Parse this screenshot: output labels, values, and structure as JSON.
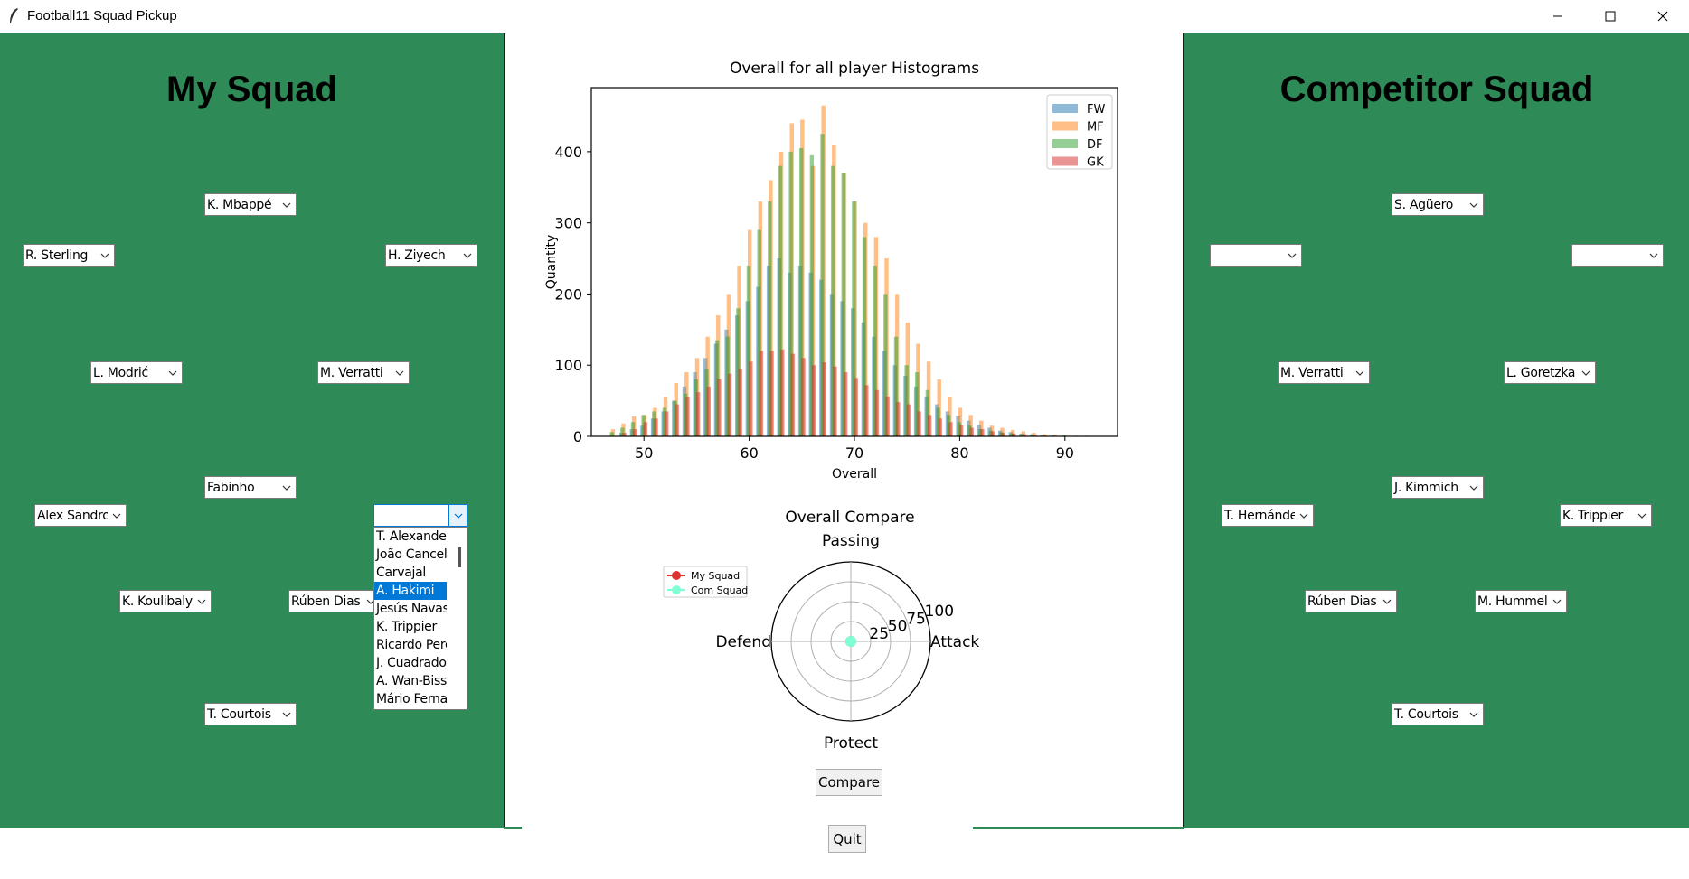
{
  "window": {
    "title": "Football11 Squad Pickup"
  },
  "my_squad": {
    "title": "My Squad",
    "slots": [
      {
        "id": "fw-center",
        "value": "K. Mbappé"
      },
      {
        "id": "fw-left",
        "value": "R. Sterling"
      },
      {
        "id": "fw-right",
        "value": "H. Ziyech"
      },
      {
        "id": "mf-left",
        "value": "L. Modrić"
      },
      {
        "id": "mf-right",
        "value": "M. Verratti"
      },
      {
        "id": "mf-center",
        "value": "Fabinho"
      },
      {
        "id": "df-left",
        "value": "Alex Sandro"
      },
      {
        "id": "df-right",
        "value": ""
      },
      {
        "id": "cb-left",
        "value": "K. Koulibaly"
      },
      {
        "id": "cb-right",
        "value": "Rúben Dias"
      },
      {
        "id": "gk",
        "value": "T. Courtois"
      }
    ],
    "dropdown_options": [
      "T. Alexander-Arnold",
      "João Cancelo",
      "Carvajal",
      "A. Hakimi",
      "Jesús Navas",
      "K. Trippier",
      "Ricardo Pereira",
      "J. Cuadrado",
      "A. Wan-Bissaka",
      "Mário Fernandes"
    ],
    "dropdown_selected": "A. Hakimi"
  },
  "competitor_squad": {
    "title": "Competitor Squad",
    "slots": [
      {
        "id": "fw-center",
        "value": "S. Agüero"
      },
      {
        "id": "fw-left",
        "value": ""
      },
      {
        "id": "fw-right",
        "value": ""
      },
      {
        "id": "mf-left",
        "value": "M. Verratti"
      },
      {
        "id": "mf-right",
        "value": "L. Goretzka"
      },
      {
        "id": "mf-center",
        "value": "J. Kimmich"
      },
      {
        "id": "df-left",
        "value": "T. Hernández"
      },
      {
        "id": "df-right",
        "value": "K. Trippier"
      },
      {
        "id": "cb-left",
        "value": "Rúben Dias"
      },
      {
        "id": "cb-right",
        "value": "M. Hummels"
      },
      {
        "id": "gk",
        "value": "T. Courtois"
      }
    ]
  },
  "buttons": {
    "compare": "Compare",
    "quit": "Quit"
  },
  "chart_data": [
    {
      "type": "bar",
      "title": "Overall for all player Histograms",
      "xlabel": "Overall",
      "ylabel": "Quantity",
      "xlim": [
        45,
        95
      ],
      "ylim": [
        0,
        490
      ],
      "xticks": [
        50,
        60,
        70,
        80,
        90
      ],
      "yticks": [
        0,
        100,
        200,
        300,
        400
      ],
      "legend_position": "top-right",
      "series": [
        {
          "name": "FW",
          "color": "#1f77b4",
          "x": [
            48,
            49,
            50,
            51,
            52,
            53,
            54,
            55,
            56,
            57,
            58,
            59,
            60,
            61,
            62,
            63,
            64,
            65,
            66,
            67,
            68,
            69,
            70,
            71,
            72,
            73,
            74,
            75,
            76,
            77,
            78,
            79,
            80,
            81,
            82,
            83,
            84,
            85,
            86,
            87,
            88,
            89,
            90
          ],
          "values": [
            5,
            10,
            15,
            25,
            35,
            50,
            70,
            90,
            110,
            130,
            150,
            170,
            190,
            210,
            240,
            250,
            230,
            240,
            230,
            220,
            200,
            190,
            180,
            160,
            140,
            120,
            100,
            85,
            70,
            55,
            45,
            35,
            28,
            22,
            16,
            12,
            8,
            6,
            4,
            3,
            2,
            1,
            1
          ]
        },
        {
          "name": "MF",
          "color": "#ff7f0e",
          "x": [
            47,
            48,
            49,
            50,
            51,
            52,
            53,
            54,
            55,
            56,
            57,
            58,
            59,
            60,
            61,
            62,
            63,
            64,
            65,
            66,
            67,
            68,
            69,
            70,
            71,
            72,
            73,
            74,
            75,
            76,
            77,
            78,
            79,
            80,
            81,
            82,
            83,
            84,
            85,
            86,
            87,
            88,
            89,
            90,
            91,
            92
          ],
          "values": [
            10,
            18,
            28,
            30,
            40,
            55,
            75,
            90,
            110,
            140,
            170,
            200,
            240,
            290,
            330,
            360,
            400,
            440,
            445,
            380,
            465,
            410,
            370,
            330,
            300,
            280,
            250,
            200,
            160,
            130,
            105,
            80,
            55,
            40,
            30,
            22,
            15,
            12,
            9,
            7,
            5,
            3,
            2,
            1,
            1,
            1
          ]
        },
        {
          "name": "DF",
          "color": "#2ca02c",
          "x": [
            47,
            48,
            49,
            50,
            51,
            52,
            53,
            54,
            55,
            56,
            57,
            58,
            59,
            60,
            61,
            62,
            63,
            64,
            65,
            66,
            67,
            68,
            69,
            70,
            71,
            72,
            73,
            74,
            75,
            76,
            77,
            78,
            79,
            80,
            81,
            82,
            83,
            84,
            85,
            86,
            87,
            88,
            89,
            90
          ],
          "values": [
            6,
            12,
            20,
            30,
            35,
            40,
            50,
            60,
            80,
            95,
            135,
            140,
            180,
            240,
            290,
            330,
            380,
            400,
            405,
            395,
            425,
            380,
            370,
            330,
            280,
            240,
            200,
            140,
            100,
            90,
            65,
            40,
            30,
            20,
            15,
            10,
            8,
            6,
            4,
            3,
            2,
            1,
            1,
            1
          ]
        },
        {
          "name": "GK",
          "color": "#d62728",
          "x": [
            48,
            49,
            50,
            51,
            52,
            53,
            54,
            55,
            56,
            57,
            58,
            59,
            60,
            61,
            62,
            63,
            64,
            65,
            66,
            67,
            68,
            69,
            70,
            71,
            72,
            73,
            74,
            75,
            76,
            77,
            78,
            79,
            80,
            81,
            82,
            83,
            84,
            85,
            86,
            87,
            88
          ],
          "values": [
            5,
            10,
            20,
            25,
            35,
            45,
            55,
            62,
            70,
            80,
            88,
            95,
            105,
            120,
            120,
            122,
            116,
            110,
            100,
            104,
            98,
            90,
            82,
            72,
            65,
            56,
            48,
            45,
            35,
            30,
            25,
            20,
            16,
            12,
            10,
            7,
            5,
            4,
            3,
            2,
            1
          ]
        }
      ]
    },
    {
      "type": "radar",
      "title": "Overall Compare",
      "axes": [
        "Attack",
        "Passing",
        "Defend",
        "Protect"
      ],
      "rticks": [
        25,
        50,
        75,
        100
      ],
      "rlim": [
        0,
        100
      ],
      "legend_position": "top-left",
      "series": [
        {
          "name": "My Squad",
          "color": "#e03030",
          "values": [
            0,
            0,
            0,
            0
          ]
        },
        {
          "name": "Com Squad",
          "color": "#7fffd4",
          "values": [
            0,
            0,
            0,
            0
          ]
        }
      ]
    }
  ]
}
